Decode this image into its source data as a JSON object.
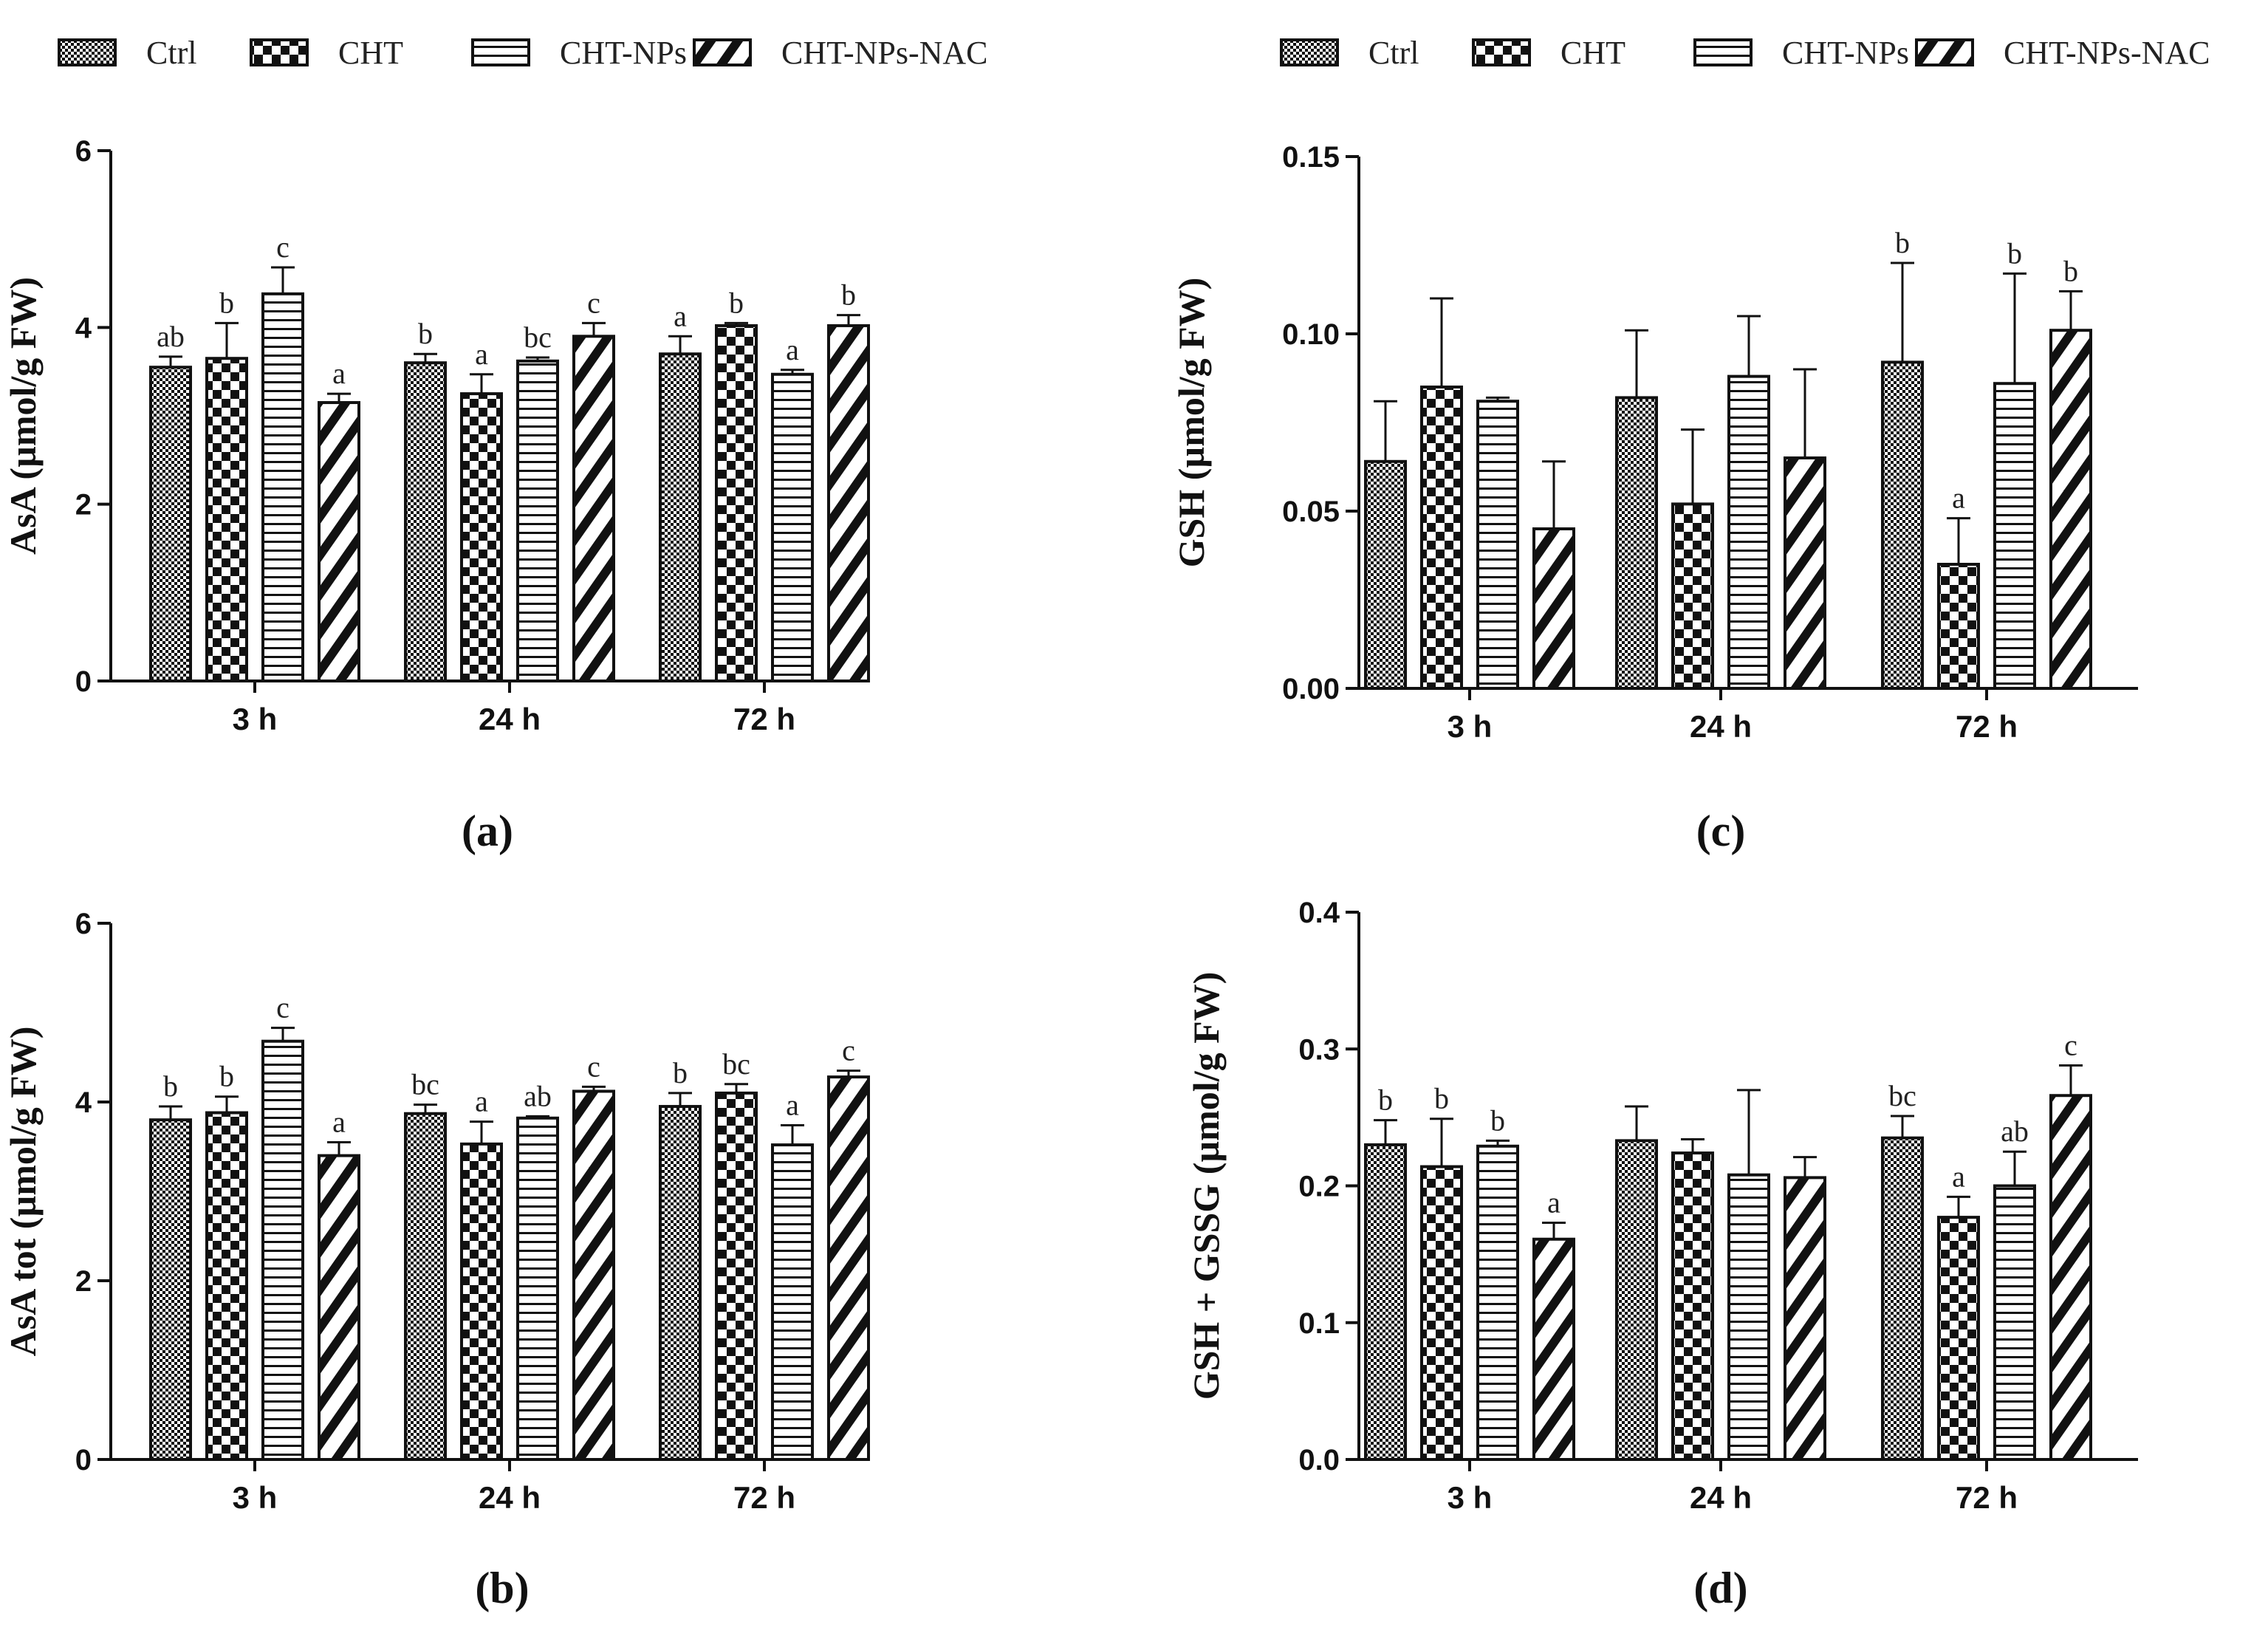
{
  "legend_items": [
    {
      "label": "Ctrl",
      "pattern": "dots"
    },
    {
      "label": "CHT",
      "pattern": "checker"
    },
    {
      "label": "CHT-NPs",
      "pattern": "hlines"
    },
    {
      "label": "CHT-NPs-NAC",
      "pattern": "diag"
    }
  ],
  "chart_data": [
    {
      "type": "bar",
      "panel_label": "(a)",
      "ylabel": "AsA  (µmol/g FW)",
      "categories": [
        "3 h",
        "24 h",
        "72 h"
      ],
      "ylim": [
        0,
        6
      ],
      "yticks": [
        "0",
        "2",
        "4",
        "6"
      ],
      "ytick_values": [
        0,
        2,
        4,
        6
      ],
      "series": [
        {
          "name": "Ctrl",
          "values": [
            3.55,
            3.6,
            3.7
          ],
          "errors": [
            0.12,
            0.1,
            0.2
          ],
          "labels": [
            "ab",
            "b",
            "a"
          ]
        },
        {
          "name": "CHT",
          "values": [
            3.65,
            3.25,
            4.02
          ],
          "errors": [
            0.4,
            0.22,
            0.03
          ],
          "labels": [
            "b",
            "a",
            "b"
          ]
        },
        {
          "name": "CHT-NPs",
          "values": [
            4.38,
            3.62,
            3.47
          ],
          "errors": [
            0.3,
            0.04,
            0.05
          ],
          "labels": [
            "c",
            "bc",
            "a"
          ]
        },
        {
          "name": "CHT-NPs-NAC",
          "values": [
            3.15,
            3.9,
            4.02
          ],
          "errors": [
            0.1,
            0.15,
            0.12
          ],
          "labels": [
            "a",
            "c",
            "b"
          ]
        }
      ]
    },
    {
      "type": "bar",
      "panel_label": "(c)",
      "ylabel": "GSH (µmol/g FW)",
      "categories": [
        "3 h",
        "24 h",
        "72 h"
      ],
      "ylim": [
        0,
        0.15
      ],
      "yticks": [
        "0.00",
        "0.05",
        "0.10",
        "0.15"
      ],
      "ytick_values": [
        0,
        0.05,
        0.1,
        0.15
      ],
      "series": [
        {
          "name": "Ctrl",
          "values": [
            0.064,
            0.082,
            0.092
          ],
          "errors": [
            0.017,
            0.019,
            0.028
          ],
          "labels": [
            "",
            "",
            "b"
          ]
        },
        {
          "name": "CHT",
          "values": [
            0.085,
            0.052,
            0.035
          ],
          "errors": [
            0.025,
            0.021,
            0.013
          ],
          "labels": [
            "",
            "",
            "a"
          ]
        },
        {
          "name": "CHT-NPs",
          "values": [
            0.081,
            0.088,
            0.086
          ],
          "errors": [
            0.001,
            0.017,
            0.031
          ],
          "labels": [
            "",
            "",
            "b"
          ]
        },
        {
          "name": "CHT-NPs-NAC",
          "values": [
            0.045,
            0.065,
            0.101
          ],
          "errors": [
            0.019,
            0.025,
            0.011
          ],
          "labels": [
            "",
            "",
            "b"
          ]
        }
      ]
    },
    {
      "type": "bar",
      "panel_label": "(b)",
      "ylabel": "AsA tot (µmol/g FW)",
      "categories": [
        "3 h",
        "24 h",
        "72 h"
      ],
      "ylim": [
        0,
        6
      ],
      "yticks": [
        "0",
        "2",
        "4",
        "6"
      ],
      "ytick_values": [
        0,
        2,
        4,
        6
      ],
      "series": [
        {
          "name": "Ctrl",
          "values": [
            3.8,
            3.87,
            3.95
          ],
          "errors": [
            0.15,
            0.1,
            0.15
          ],
          "labels": [
            "b",
            "bc",
            "b"
          ]
        },
        {
          "name": "CHT",
          "values": [
            3.88,
            3.53,
            4.1
          ],
          "errors": [
            0.18,
            0.25,
            0.1
          ],
          "labels": [
            "b",
            "a",
            "bc"
          ]
        },
        {
          "name": "CHT-NPs",
          "values": [
            4.68,
            3.82,
            3.52
          ],
          "errors": [
            0.15,
            0.02,
            0.22
          ],
          "labels": [
            "c",
            "ab",
            "a"
          ]
        },
        {
          "name": "CHT-NPs-NAC",
          "values": [
            3.4,
            4.12,
            4.28
          ],
          "errors": [
            0.15,
            0.05,
            0.07
          ],
          "labels": [
            "a",
            "c",
            "c"
          ]
        }
      ]
    },
    {
      "type": "bar",
      "panel_label": "(d)",
      "ylabel": "GSH + GSSG (µmol/g FW)",
      "categories": [
        "3 h",
        "24 h",
        "72 h"
      ],
      "ylim": [
        0,
        0.4
      ],
      "yticks": [
        "0.0",
        "0.1",
        "0.2",
        "0.3",
        "0.4"
      ],
      "ytick_values": [
        0,
        0.1,
        0.2,
        0.3,
        0.4
      ],
      "series": [
        {
          "name": "Ctrl",
          "values": [
            0.23,
            0.233,
            0.235
          ],
          "errors": [
            0.018,
            0.025,
            0.016
          ],
          "labels": [
            "b",
            "",
            "bc"
          ]
        },
        {
          "name": "CHT",
          "values": [
            0.214,
            0.224,
            0.177
          ],
          "errors": [
            0.035,
            0.01,
            0.015
          ],
          "labels": [
            "b",
            "",
            "a"
          ]
        },
        {
          "name": "CHT-NPs",
          "values": [
            0.229,
            0.208,
            0.2
          ],
          "errors": [
            0.004,
            0.062,
            0.025
          ],
          "labels": [
            "b",
            "",
            "ab"
          ]
        },
        {
          "name": "CHT-NPs-NAC",
          "values": [
            0.161,
            0.206,
            0.266
          ],
          "errors": [
            0.012,
            0.015,
            0.022
          ],
          "labels": [
            "a",
            "",
            "c"
          ]
        }
      ]
    }
  ]
}
